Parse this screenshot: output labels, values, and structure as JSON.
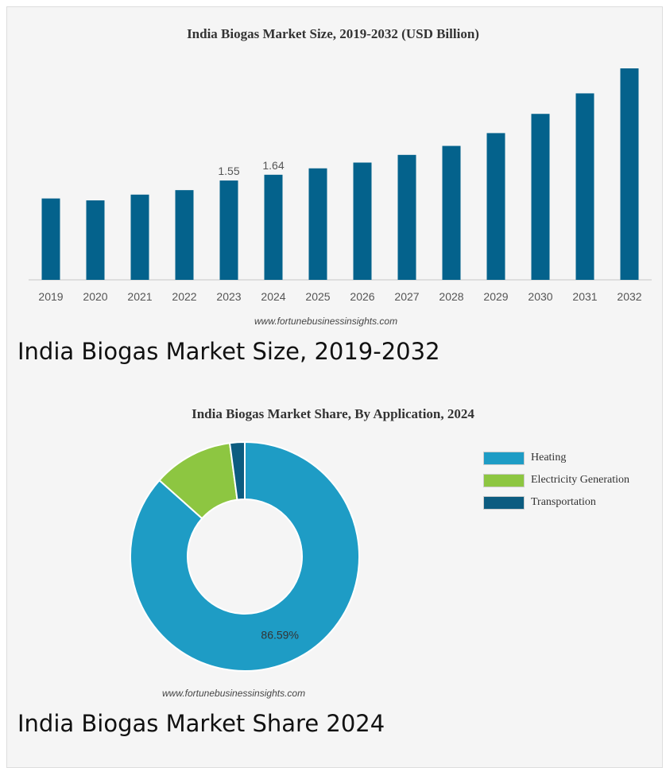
{
  "chart_data": [
    {
      "type": "bar",
      "title": "India Biogas Market Size, 2019-2032 (USD Billion)",
      "categories": [
        "2019",
        "2020",
        "2021",
        "2022",
        "2023",
        "2024",
        "2025",
        "2026",
        "2027",
        "2028",
        "2029",
        "2030",
        "2031",
        "2032"
      ],
      "values": [
        1.27,
        1.24,
        1.33,
        1.4,
        1.55,
        1.64,
        1.74,
        1.83,
        1.95,
        2.09,
        2.29,
        2.59,
        2.91,
        3.3
      ],
      "data_labels": [
        {
          "category": "2023",
          "text": "1.55"
        },
        {
          "category": "2024",
          "text": "1.64"
        }
      ],
      "ylim": [
        0,
        3.3
      ],
      "bar_color": "#04628c",
      "grid": false,
      "legend": "none"
    },
    {
      "type": "pie",
      "title": "India Biogas Market Share, By Application, 2024",
      "donut": true,
      "series": [
        {
          "name": "Heating",
          "value": 86.59,
          "color": "#1e9cc5"
        },
        {
          "name": "Electricity Generation",
          "value": 11.31,
          "color": "#8dc641"
        },
        {
          "name": "Transportation",
          "value": 2.1,
          "color": "#0c5c80"
        }
      ],
      "data_labels": [
        {
          "name": "Heating",
          "text": "86.59%"
        }
      ],
      "legend": "top-right"
    }
  ],
  "watermark_text": "www.fortunebusinessinsights.com",
  "captions": {
    "bar": "India Biogas Market Size, 2019-2032",
    "pie": "India Biogas Market Share 2024"
  }
}
